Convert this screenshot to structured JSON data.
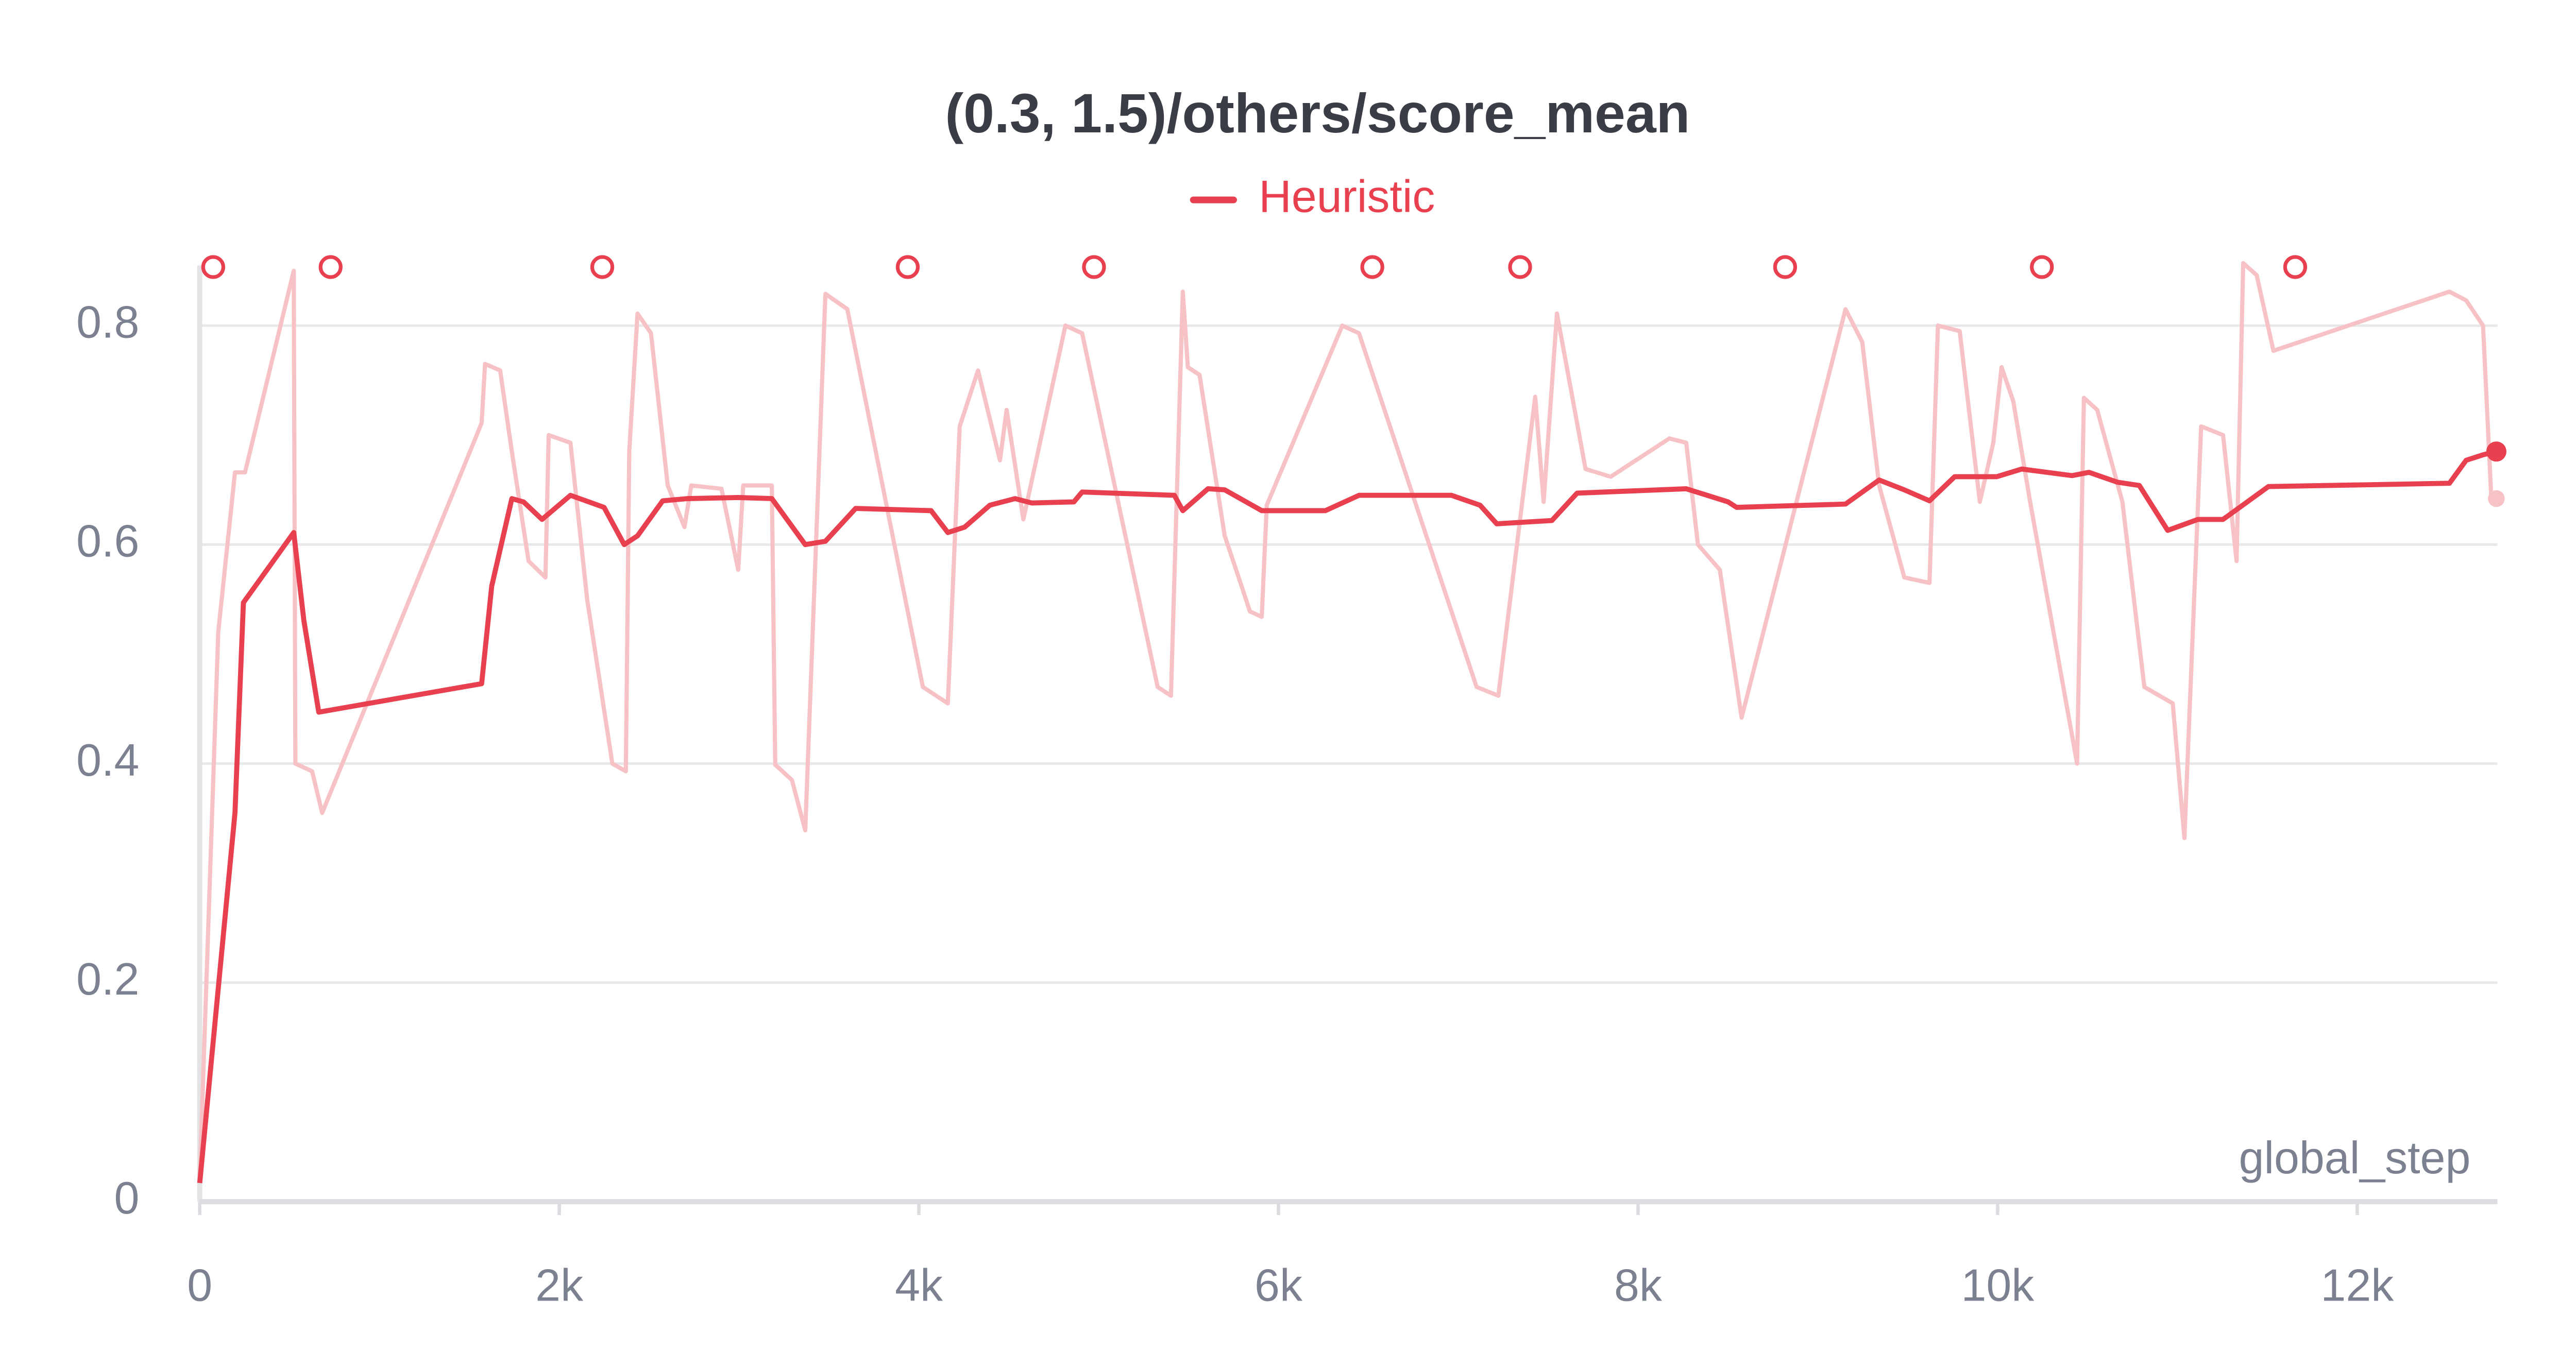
{
  "chart_data": {
    "type": "line",
    "title": "(0.3, 1.5)/others/score_mean",
    "x_label": "global_step",
    "xlim": [
      0,
      12780
    ],
    "ylim": [
      0,
      0.855
    ],
    "xticks": [
      0,
      {
        "value": 2000,
        "label": "2k"
      },
      {
        "value": 4000,
        "label": "4k"
      },
      {
        "value": 6000,
        "label": "6k"
      },
      {
        "value": 8000,
        "label": "8k"
      },
      {
        "value": 10000,
        "label": "10k"
      },
      {
        "value": 12000,
        "label": "12k"
      }
    ],
    "yticks": [
      0,
      0.2,
      0.4,
      0.6,
      0.8
    ],
    "grid": true,
    "legend": "top",
    "series": [
      {
        "name": "Heuristic",
        "color": "#e8404f",
        "x": [
          0,
          196,
          243,
          523,
          579,
          662,
          1568,
          1624,
          1736,
          1801,
          1904,
          2062,
          2249,
          2361,
          2435,
          2575,
          2715,
          2995,
          3182,
          3368,
          3480,
          3648,
          4068,
          4161,
          4255,
          4395,
          4535,
          4628,
          4862,
          4908,
          5421,
          5468,
          5608,
          5701,
          5907,
          6261,
          6448,
          6962,
          7121,
          7214,
          7521,
          7661,
          8268,
          8501,
          8548,
          9154,
          9341,
          9481,
          9621,
          9761,
          9994,
          10134,
          10414,
          10508,
          10666,
          10788,
          10946,
          11114,
          11254,
          11506,
          12513,
          12606,
          12700,
          12774
        ],
        "values": [
          0.017,
          0.355,
          0.547,
          0.611,
          0.531,
          0.447,
          0.473,
          0.562,
          0.642,
          0.639,
          0.623,
          0.645,
          0.634,
          0.6,
          0.608,
          0.64,
          0.642,
          0.643,
          0.642,
          0.6,
          0.603,
          0.633,
          0.631,
          0.611,
          0.616,
          0.636,
          0.642,
          0.638,
          0.639,
          0.648,
          0.645,
          0.631,
          0.651,
          0.65,
          0.631,
          0.631,
          0.645,
          0.645,
          0.636,
          0.619,
          0.622,
          0.647,
          0.651,
          0.639,
          0.634,
          0.637,
          0.659,
          0.65,
          0.64,
          0.662,
          0.662,
          0.669,
          0.663,
          0.666,
          0.657,
          0.654,
          0.613,
          0.623,
          0.623,
          0.653,
          0.656,
          0.677,
          0.682,
          0.685
        ]
      }
    ],
    "raw": {
      "color": "#f7c2c6",
      "x": [
        0,
        103,
        196,
        252,
        523,
        532,
        625,
        681,
        1568,
        1587,
        1671,
        1736,
        1829,
        1923,
        1941,
        2062,
        2155,
        2295,
        2370,
        2389,
        2435,
        2510,
        2603,
        2696,
        2734,
        2902,
        2995,
        3023,
        3182,
        3201,
        3294,
        3368,
        3480,
        3602,
        4022,
        4161,
        4227,
        4329,
        4451,
        4488,
        4581,
        4815,
        4908,
        5328,
        5402,
        5468,
        5496,
        5561,
        5701,
        5795,
        5841,
        5907,
        5935,
        6355,
        6448,
        7102,
        7223,
        7428,
        7475,
        7549,
        7708,
        7848,
        8175,
        8268,
        8333,
        8455,
        8576,
        9154,
        9247,
        9341,
        9481,
        9621,
        9668,
        9789,
        9901,
        9976,
        10022,
        10087,
        10181,
        10442,
        10480,
        10554,
        10694,
        10816,
        10974,
        11039,
        11132,
        11254,
        11329,
        11366,
        11441,
        11534,
        12513,
        12606,
        12700,
        12746,
        12774
      ],
      "values": [
        0.02,
        0.52,
        0.666,
        0.666,
        0.85,
        0.4,
        0.393,
        0.355,
        0.711,
        0.765,
        0.759,
        0.685,
        0.585,
        0.57,
        0.7,
        0.693,
        0.55,
        0.4,
        0.393,
        0.685,
        0.811,
        0.793,
        0.654,
        0.616,
        0.654,
        0.651,
        0.577,
        0.654,
        0.654,
        0.399,
        0.385,
        0.339,
        0.829,
        0.815,
        0.47,
        0.455,
        0.708,
        0.759,
        0.677,
        0.723,
        0.623,
        0.8,
        0.793,
        0.47,
        0.462,
        0.831,
        0.762,
        0.755,
        0.608,
        0.562,
        0.539,
        0.534,
        0.636,
        0.8,
        0.793,
        0.47,
        0.462,
        0.735,
        0.639,
        0.811,
        0.669,
        0.662,
        0.697,
        0.693,
        0.6,
        0.577,
        0.442,
        0.815,
        0.785,
        0.654,
        0.57,
        0.565,
        0.8,
        0.795,
        0.639,
        0.693,
        0.762,
        0.731,
        0.639,
        0.4,
        0.734,
        0.723,
        0.639,
        0.47,
        0.455,
        0.332,
        0.708,
        0.7,
        0.585,
        0.857,
        0.846,
        0.777,
        0.831,
        0.823,
        0.8,
        0.642,
        0.642
      ]
    },
    "event_markers_x": [
      75,
      728,
      2239,
      3938,
      4974,
      6522,
      7344,
      8818,
      10246,
      11655
    ]
  }
}
